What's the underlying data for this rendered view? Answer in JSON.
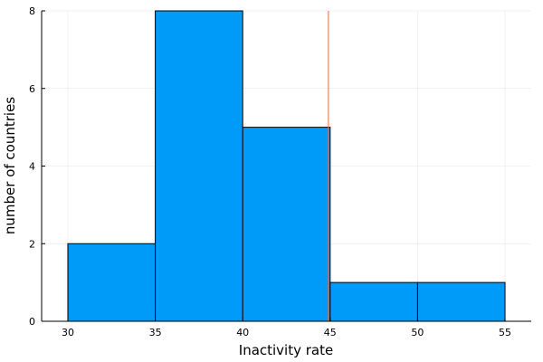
{
  "chart_data": {
    "type": "bar",
    "subtype": "histogram",
    "xlabel": "Inactivity rate",
    "ylabel": "number of countries",
    "bins": [
      {
        "x0": 30,
        "x1": 35,
        "count": 2
      },
      {
        "x0": 35,
        "x1": 40,
        "count": 8
      },
      {
        "x0": 40,
        "x1": 45,
        "count": 5
      },
      {
        "x0": 45,
        "x1": 50,
        "count": 1
      },
      {
        "x0": 50,
        "x1": 55,
        "count": 1
      }
    ],
    "xlim": [
      28.5,
      56.5
    ],
    "ylim": [
      0,
      8
    ],
    "xticks": [
      30,
      35,
      40,
      45,
      50,
      55
    ],
    "yticks": [
      0,
      2,
      4,
      6,
      8
    ],
    "reference_line": {
      "x": 44.9,
      "color": "#e26f46"
    },
    "bar_color": "#009af9",
    "edge_color": "#000000",
    "grid": true
  }
}
